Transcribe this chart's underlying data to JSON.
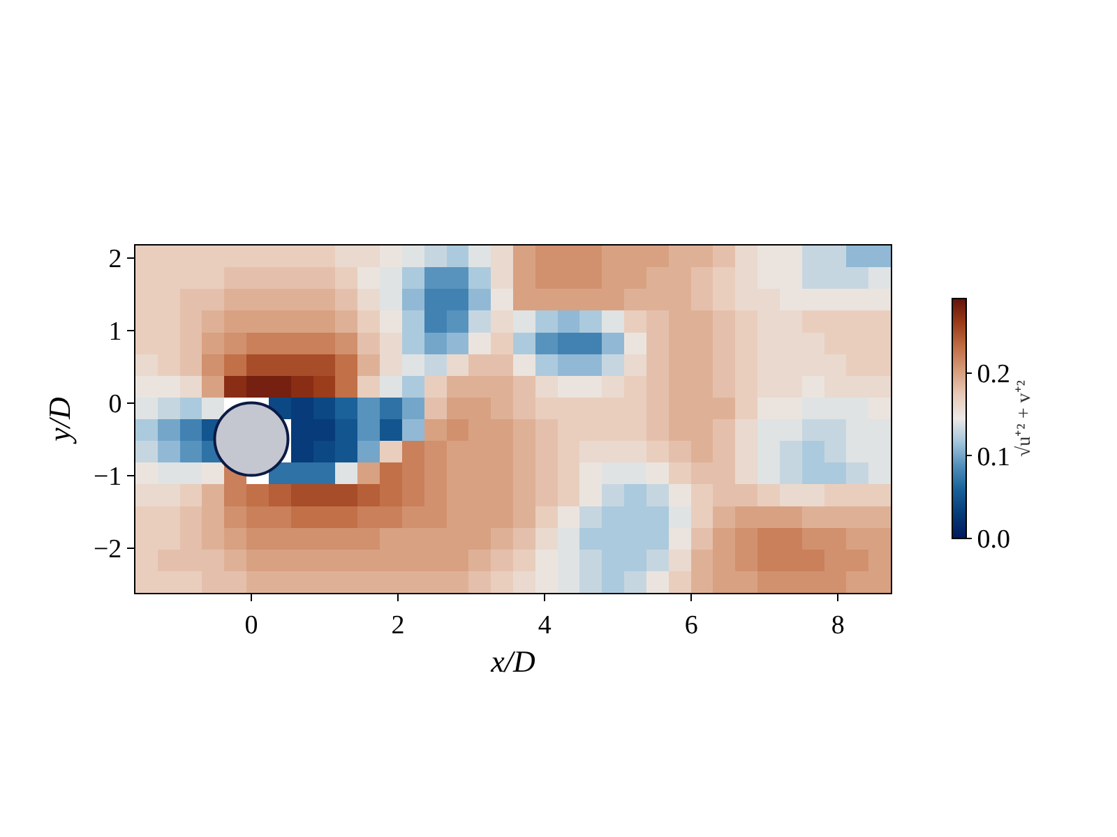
{
  "chart_data": {
    "type": "heatmap",
    "xlabel": "x/D",
    "ylabel": "y/D",
    "clabel": "√u⁺² + v⁺²",
    "xlim": [
      -1.58,
      8.72
    ],
    "ylim": [
      -2.62,
      2.17
    ],
    "xticks": [
      0,
      2,
      4,
      6,
      8
    ],
    "yticks": [
      {
        "value": -2,
        "label": "−2"
      },
      {
        "value": -1,
        "label": "−1"
      },
      0,
      1,
      2
    ],
    "clim": [
      0,
      0.29
    ],
    "cticks": [
      {
        "value": 0,
        "label": "0.0"
      },
      0.1,
      0.2
    ],
    "cells": [
      [
        0.17,
        0.17,
        0.17,
        0.17,
        0.17,
        0.17,
        0.17,
        0.17,
        0.17,
        0.16,
        0.16,
        0.15,
        0.14,
        0.13,
        0.12,
        0.14,
        0.16,
        0.2,
        0.21,
        0.21,
        0.21,
        0.2,
        0.2,
        0.2,
        0.19,
        0.19,
        0.18,
        0.16,
        0.15,
        0.15,
        0.13,
        0.13,
        0.11,
        0.11
      ],
      [
        0.17,
        0.17,
        0.17,
        0.17,
        0.18,
        0.18,
        0.18,
        0.18,
        0.18,
        0.17,
        0.15,
        0.14,
        0.12,
        0.09,
        0.09,
        0.12,
        0.16,
        0.2,
        0.21,
        0.21,
        0.21,
        0.2,
        0.2,
        0.19,
        0.19,
        0.18,
        0.17,
        0.16,
        0.15,
        0.15,
        0.13,
        0.13,
        0.13,
        0.14
      ],
      [
        0.17,
        0.17,
        0.18,
        0.18,
        0.19,
        0.19,
        0.19,
        0.19,
        0.19,
        0.18,
        0.16,
        0.14,
        0.11,
        0.08,
        0.08,
        0.11,
        0.15,
        0.2,
        0.2,
        0.2,
        0.2,
        0.2,
        0.19,
        0.19,
        0.19,
        0.18,
        0.17,
        0.16,
        0.16,
        0.15,
        0.15,
        0.15,
        0.15,
        0.15
      ],
      [
        0.17,
        0.17,
        0.18,
        0.19,
        0.2,
        0.2,
        0.2,
        0.2,
        0.2,
        0.19,
        0.17,
        0.15,
        0.12,
        0.08,
        0.09,
        0.13,
        0.16,
        0.14,
        0.12,
        0.11,
        0.12,
        0.14,
        0.17,
        0.18,
        0.19,
        0.19,
        0.18,
        0.17,
        0.16,
        0.16,
        0.17,
        0.17,
        0.17,
        0.17
      ],
      [
        0.17,
        0.17,
        0.18,
        0.2,
        0.21,
        0.22,
        0.22,
        0.22,
        0.22,
        0.21,
        0.18,
        0.16,
        0.12,
        0.1,
        0.11,
        0.15,
        0.17,
        0.12,
        0.09,
        0.08,
        0.08,
        0.11,
        0.15,
        0.18,
        0.19,
        0.19,
        0.18,
        0.17,
        0.16,
        0.16,
        0.16,
        0.17,
        0.17,
        0.17
      ],
      [
        0.16,
        0.17,
        0.18,
        0.21,
        0.23,
        0.25,
        0.25,
        0.25,
        0.25,
        0.23,
        0.19,
        0.16,
        0.14,
        0.13,
        0.16,
        0.18,
        0.18,
        0.15,
        0.12,
        0.11,
        0.11,
        0.13,
        0.16,
        0.18,
        0.19,
        0.19,
        0.18,
        0.17,
        0.16,
        0.16,
        0.16,
        0.16,
        0.17,
        0.17
      ],
      [
        0.15,
        0.15,
        0.16,
        0.2,
        0.27,
        0.28,
        0.28,
        0.27,
        0.26,
        0.23,
        0.17,
        0.14,
        0.12,
        0.17,
        0.19,
        0.19,
        0.19,
        0.18,
        0.16,
        0.15,
        0.15,
        0.16,
        0.17,
        0.18,
        0.19,
        0.19,
        0.18,
        0.17,
        0.16,
        0.16,
        0.15,
        0.16,
        0.16,
        0.16
      ],
      [
        0.14,
        0.13,
        0.12,
        0.14,
        null,
        null,
        0.04,
        0.03,
        0.04,
        0.06,
        0.09,
        0.07,
        0.1,
        0.18,
        0.2,
        0.2,
        0.19,
        0.18,
        0.17,
        0.17,
        0.17,
        0.17,
        0.17,
        0.18,
        0.19,
        0.19,
        0.19,
        0.17,
        0.15,
        0.15,
        0.14,
        0.14,
        0.14,
        0.15
      ],
      [
        0.12,
        0.1,
        0.08,
        0.05,
        null,
        null,
        null,
        0.03,
        0.03,
        0.05,
        0.09,
        0.05,
        0.11,
        0.2,
        0.21,
        0.2,
        0.2,
        0.19,
        0.18,
        0.17,
        0.17,
        0.17,
        0.17,
        0.18,
        0.19,
        0.19,
        0.18,
        0.16,
        0.14,
        0.14,
        0.13,
        0.13,
        0.14,
        0.14
      ],
      [
        0.13,
        0.11,
        0.09,
        0.07,
        null,
        null,
        null,
        0.03,
        0.04,
        0.05,
        0.1,
        0.17,
        0.22,
        0.21,
        0.2,
        0.2,
        0.2,
        0.19,
        0.18,
        0.17,
        0.16,
        0.16,
        0.16,
        0.17,
        0.18,
        0.19,
        0.18,
        0.16,
        0.14,
        0.13,
        0.12,
        0.13,
        0.14,
        0.14
      ],
      [
        0.15,
        0.14,
        0.14,
        0.15,
        0.22,
        null,
        0.07,
        0.07,
        0.07,
        0.14,
        0.2,
        0.23,
        0.22,
        0.21,
        0.2,
        0.2,
        0.2,
        0.19,
        0.18,
        0.17,
        0.15,
        0.14,
        0.14,
        0.15,
        0.17,
        0.18,
        0.18,
        0.16,
        0.14,
        0.13,
        0.12,
        0.12,
        0.13,
        0.14
      ],
      [
        0.16,
        0.16,
        0.17,
        0.19,
        0.22,
        0.23,
        0.24,
        0.25,
        0.25,
        0.25,
        0.24,
        0.23,
        0.22,
        0.21,
        0.2,
        0.2,
        0.2,
        0.19,
        0.18,
        0.17,
        0.15,
        0.13,
        0.12,
        0.13,
        0.15,
        0.17,
        0.18,
        0.18,
        0.17,
        0.16,
        0.16,
        0.17,
        0.17,
        0.17
      ],
      [
        0.17,
        0.17,
        0.18,
        0.19,
        0.21,
        0.22,
        0.22,
        0.23,
        0.23,
        0.23,
        0.22,
        0.22,
        0.21,
        0.21,
        0.2,
        0.2,
        0.2,
        0.19,
        0.17,
        0.15,
        0.13,
        0.12,
        0.12,
        0.12,
        0.14,
        0.17,
        0.19,
        0.2,
        0.2,
        0.2,
        0.19,
        0.19,
        0.19,
        0.19
      ],
      [
        0.17,
        0.17,
        0.18,
        0.19,
        0.2,
        0.21,
        0.21,
        0.21,
        0.21,
        0.21,
        0.21,
        0.2,
        0.2,
        0.2,
        0.2,
        0.2,
        0.19,
        0.18,
        0.16,
        0.14,
        0.12,
        0.12,
        0.12,
        0.12,
        0.15,
        0.18,
        0.2,
        0.21,
        0.22,
        0.22,
        0.21,
        0.21,
        0.2,
        0.2
      ],
      [
        0.17,
        0.18,
        0.18,
        0.18,
        0.19,
        0.2,
        0.2,
        0.2,
        0.2,
        0.2,
        0.2,
        0.2,
        0.2,
        0.2,
        0.2,
        0.19,
        0.18,
        0.17,
        0.15,
        0.14,
        0.13,
        0.12,
        0.12,
        0.13,
        0.16,
        0.19,
        0.2,
        0.21,
        0.22,
        0.22,
        0.22,
        0.21,
        0.21,
        0.2
      ],
      [
        0.17,
        0.17,
        0.17,
        0.18,
        0.18,
        0.19,
        0.19,
        0.19,
        0.19,
        0.19,
        0.19,
        0.19,
        0.19,
        0.19,
        0.19,
        0.18,
        0.17,
        0.16,
        0.15,
        0.14,
        0.13,
        0.12,
        0.13,
        0.15,
        0.17,
        0.19,
        0.2,
        0.2,
        0.21,
        0.21,
        0.21,
        0.21,
        0.2,
        0.2
      ]
    ]
  }
}
